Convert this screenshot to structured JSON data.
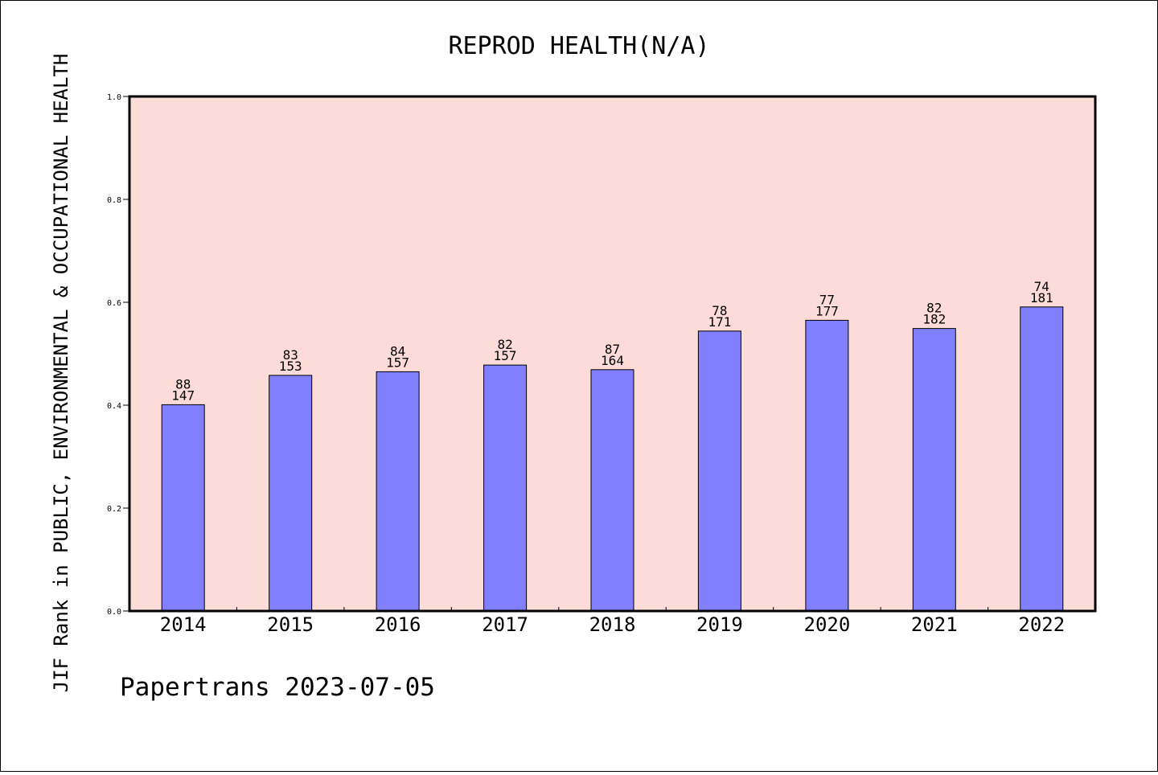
{
  "chart_data": {
    "type": "bar",
    "title": "REPROD HEALTH(N/A)",
    "ylabel": "JIF Rank in PUBLIC, ENVIRONMENTAL & OCCUPATIONAL HEALTH",
    "xlabel": "",
    "footer": "Papertrans 2023-07-05",
    "categories": [
      "2014",
      "2015",
      "2016",
      "2017",
      "2018",
      "2019",
      "2020",
      "2021",
      "2022"
    ],
    "series": [
      {
        "values": [
          0.401,
          0.458,
          0.465,
          0.478,
          0.469,
          0.544,
          0.565,
          0.549,
          0.591
        ]
      }
    ],
    "bar_labels": [
      {
        "rank": "88",
        "total": "147"
      },
      {
        "rank": "83",
        "total": "153"
      },
      {
        "rank": "84",
        "total": "157"
      },
      {
        "rank": "82",
        "total": "157"
      },
      {
        "rank": "87",
        "total": "164"
      },
      {
        "rank": "78",
        "total": "171"
      },
      {
        "rank": "77",
        "total": "177"
      },
      {
        "rank": "82",
        "total": "182"
      },
      {
        "rank": "74",
        "total": "181"
      }
    ],
    "yticks": [
      "0.0",
      "0.2",
      "0.4",
      "0.6",
      "0.8",
      "1.0"
    ],
    "ylim": [
      0,
      1
    ],
    "grid": false,
    "colors": {
      "plot_background": "#fddbd9",
      "bar_fill": "#8080ff",
      "bar_stroke": "#000000"
    }
  }
}
